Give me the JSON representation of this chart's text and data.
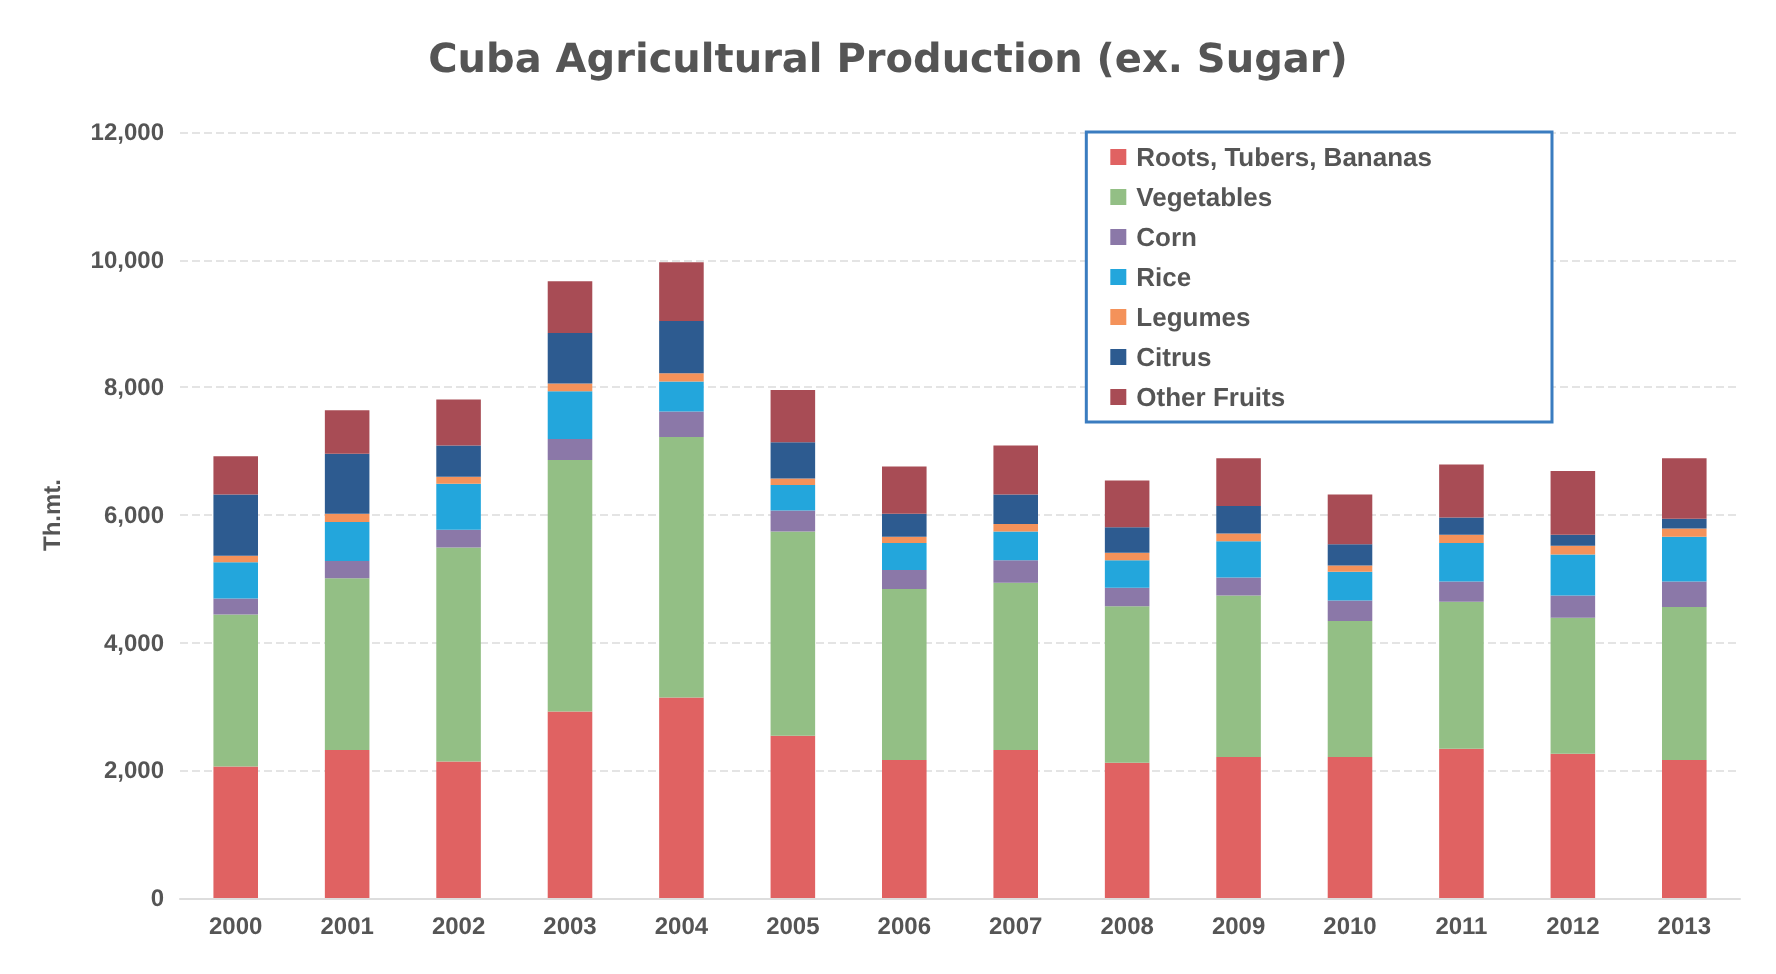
{
  "chart_data": {
    "type": "bar",
    "title": "Cuba Agricultural Production (ex. Sugar)",
    "ylabel": "Th.mt.",
    "stacked": true,
    "categories": [
      "2000",
      "2001",
      "2002",
      "2003",
      "2004",
      "2005",
      "2006",
      "2007",
      "2008",
      "2009",
      "2010",
      "2011",
      "2012",
      "2013"
    ],
    "series": [
      {
        "name": "Roots, Tubers, Bananas",
        "color": "#e06262",
        "values": [
          2060,
          2320,
          2140,
          2920,
          3140,
          2540,
          2160,
          2320,
          2120,
          2210,
          2210,
          2340,
          2260,
          2160
        ]
      },
      {
        "name": "Vegetables",
        "color": "#93bf85",
        "values": [
          2380,
          2690,
          3350,
          3940,
          4080,
          3200,
          2680,
          2620,
          2450,
          2530,
          2130,
          2300,
          2130,
          2400
        ]
      },
      {
        "name": "Corn",
        "color": "#8b78a8",
        "values": [
          250,
          270,
          280,
          330,
          400,
          330,
          300,
          350,
          290,
          280,
          320,
          320,
          350,
          400
        ]
      },
      {
        "name": "Rice",
        "color": "#23a6dc",
        "values": [
          570,
          610,
          720,
          750,
          470,
          400,
          420,
          450,
          430,
          570,
          450,
          600,
          640,
          700
        ]
      },
      {
        "name": "Legumes",
        "color": "#f4925a",
        "values": [
          100,
          130,
          110,
          120,
          130,
          100,
          100,
          120,
          120,
          120,
          100,
          130,
          140,
          130
        ]
      },
      {
        "name": "Citrus",
        "color": "#2d5b90",
        "values": [
          960,
          940,
          490,
          790,
          820,
          570,
          360,
          460,
          400,
          430,
          330,
          270,
          170,
          150
        ]
      },
      {
        "name": "Other Fruits",
        "color": "#a84c55",
        "values": [
          600,
          680,
          720,
          810,
          920,
          820,
          740,
          770,
          730,
          750,
          780,
          830,
          1000,
          950
        ]
      }
    ],
    "ylim": [
      0,
      12000
    ],
    "yticks": [
      0,
      {
        "value": 2000,
        "label": "2,000"
      },
      {
        "value": 4000,
        "label": "4,000"
      },
      {
        "value": 6000,
        "label": "6,000"
      },
      {
        "value": 8000,
        "label": "8,000"
      },
      {
        "value": 10000,
        "label": "10,000"
      },
      {
        "value": 12000,
        "label": "12,000"
      }
    ],
    "grid": "y",
    "legend": "top right"
  }
}
